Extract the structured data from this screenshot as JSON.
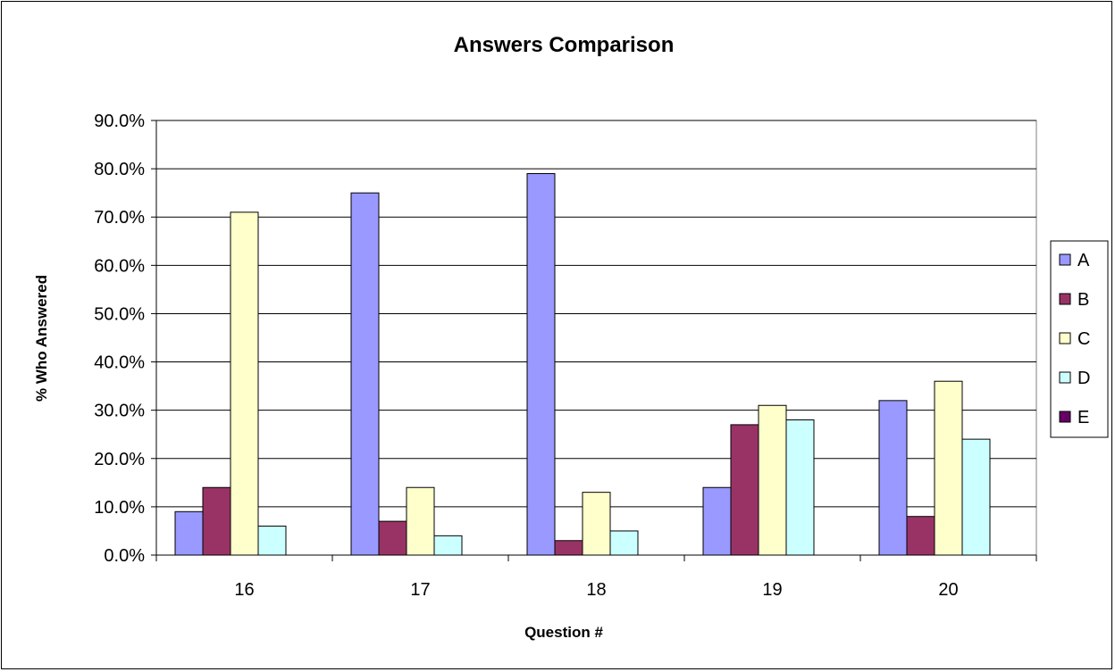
{
  "chart_data": {
    "type": "bar",
    "title": "Answers Comparison",
    "xlabel": "Question #",
    "ylabel": "% Who Answered",
    "categories": [
      "16",
      "17",
      "18",
      "19",
      "20"
    ],
    "ylim": [
      0,
      90
    ],
    "yticks": [
      0,
      10,
      20,
      30,
      40,
      50,
      60,
      70,
      80,
      90
    ],
    "ytick_labels": [
      "0.0%",
      "10.0%",
      "20.0%",
      "30.0%",
      "40.0%",
      "50.0%",
      "60.0%",
      "70.0%",
      "80.0%",
      "90.0%"
    ],
    "grid": "horizontal",
    "legend_position": "right",
    "series": [
      {
        "name": "A",
        "color": "#9999FF",
        "values": [
          9,
          75,
          79,
          14,
          32
        ]
      },
      {
        "name": "B",
        "color": "#993366",
        "values": [
          14,
          7,
          3,
          27,
          8
        ]
      },
      {
        "name": "C",
        "color": "#FFFFCC",
        "values": [
          71,
          14,
          13,
          31,
          36
        ]
      },
      {
        "name": "D",
        "color": "#CCFFFF",
        "values": [
          6,
          4,
          5,
          28,
          24
        ]
      },
      {
        "name": "E",
        "color": "#660066",
        "values": [
          0,
          0,
          0,
          0,
          0
        ]
      }
    ]
  }
}
